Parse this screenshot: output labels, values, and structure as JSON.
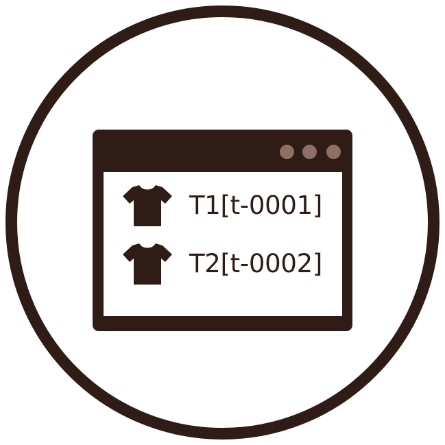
{
  "window": {
    "items": [
      {
        "label": "T1[t-0001]",
        "icon": "tshirt-icon"
      },
      {
        "label": "T2[t-0002]",
        "icon": "tshirt-icon"
      }
    ]
  },
  "colors": {
    "primary": "#2f1c17",
    "window_dots": "#8e6f66",
    "background": "#ffffff"
  }
}
